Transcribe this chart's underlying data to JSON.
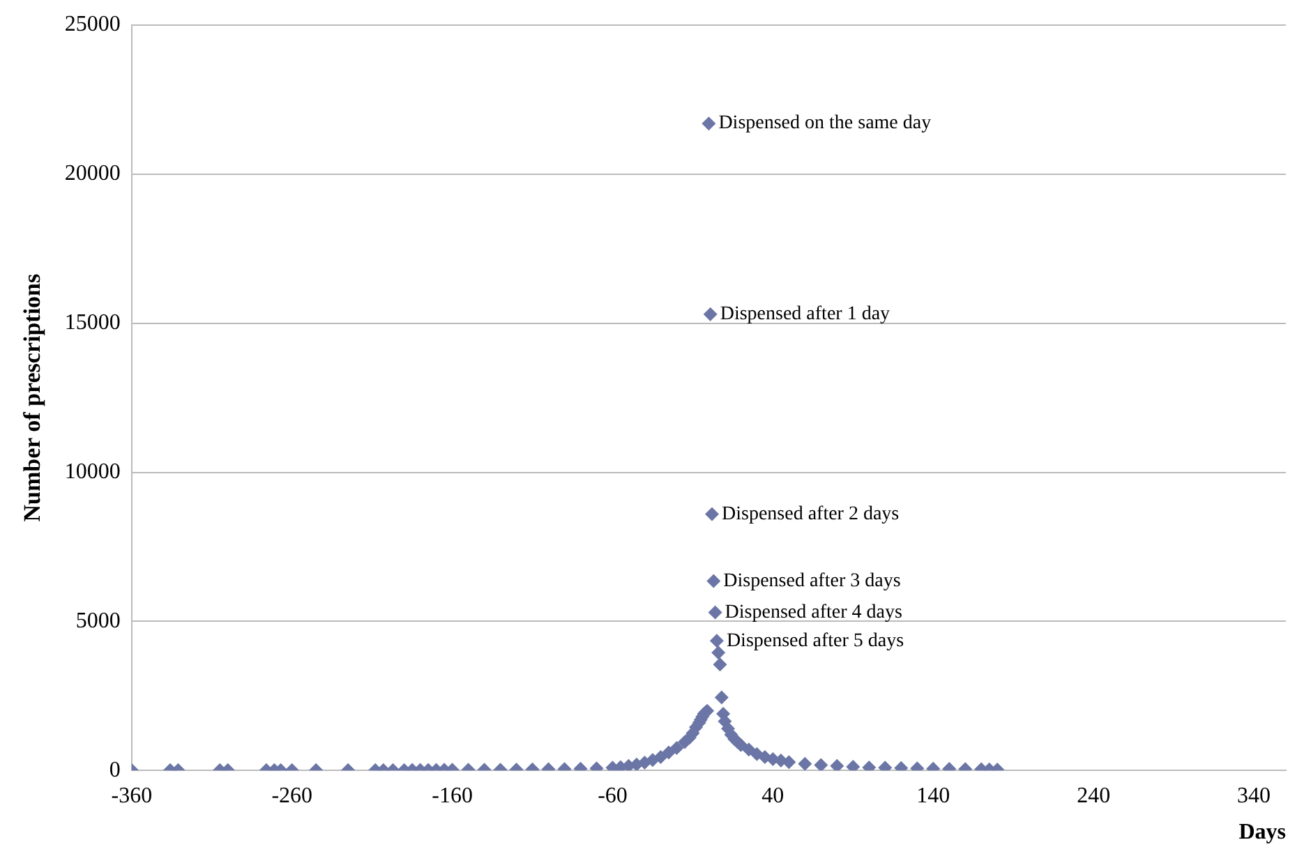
{
  "chart_data": {
    "type": "scatter",
    "xlabel": "Days",
    "ylabel": "Number of prescriptions",
    "xlim": [
      -360,
      360
    ],
    "xticks": [
      -360,
      -260,
      -160,
      -60,
      40,
      140,
      240,
      340
    ],
    "ylim": [
      0,
      25000
    ],
    "yticks": [
      0,
      5000,
      10000,
      15000,
      20000,
      25000
    ],
    "grid": "y",
    "legend": false,
    "marker": "diamond",
    "series": [
      {
        "color": "#6b76a6",
        "x": [
          -360,
          -336,
          -331,
          -305,
          -300,
          -276,
          -271,
          -267,
          -260,
          -245,
          -225,
          -208,
          -203,
          -197,
          -190,
          -185,
          -180,
          -175,
          -170,
          -165,
          -160,
          -150,
          -140,
          -130,
          -120,
          -110,
          -100,
          -90,
          -80,
          -70,
          -60,
          -55,
          -50,
          -45,
          -40,
          -35,
          -30,
          -25,
          -20,
          -15,
          -12,
          -10,
          -8,
          -6,
          -5,
          -4,
          -3,
          -2,
          -1,
          0,
          1,
          2,
          3,
          4,
          5,
          6,
          7,
          8,
          9,
          10,
          12,
          14,
          16,
          18,
          20,
          25,
          30,
          35,
          40,
          45,
          50,
          60,
          70,
          80,
          90,
          100,
          110,
          120,
          130,
          140,
          150,
          160,
          170,
          175,
          180
        ],
        "values": [
          10,
          10,
          10,
          10,
          10,
          10,
          10,
          10,
          10,
          10,
          10,
          10,
          10,
          10,
          10,
          15,
          15,
          15,
          15,
          20,
          20,
          20,
          25,
          25,
          30,
          35,
          40,
          45,
          55,
          70,
          90,
          110,
          150,
          200,
          260,
          350,
          450,
          600,
          750,
          950,
          1100,
          1250,
          1450,
          1600,
          1700,
          1800,
          1900,
          1950,
          2000,
          21700,
          15300,
          8600,
          6350,
          5300,
          4350,
          3950,
          3550,
          2450,
          1900,
          1650,
          1400,
          1200,
          1050,
          950,
          850,
          700,
          550,
          450,
          380,
          330,
          280,
          220,
          180,
          150,
          120,
          100,
          90,
          80,
          70,
          60,
          50,
          45,
          40,
          35,
          30
        ]
      }
    ],
    "annotations": [
      {
        "text": "Dispensed on the same day",
        "x": 0,
        "y": 21700
      },
      {
        "text": "Dispensed after 1 day",
        "x": 1,
        "y": 15300
      },
      {
        "text": "Dispensed after 2 days",
        "x": 2,
        "y": 8600
      },
      {
        "text": "Dispensed after 3 days",
        "x": 3,
        "y": 6350
      },
      {
        "text": "Dispensed after 4 days",
        "x": 4,
        "y": 5300
      },
      {
        "text": "Dispensed after 5 days",
        "x": 5,
        "y": 4350
      }
    ]
  }
}
